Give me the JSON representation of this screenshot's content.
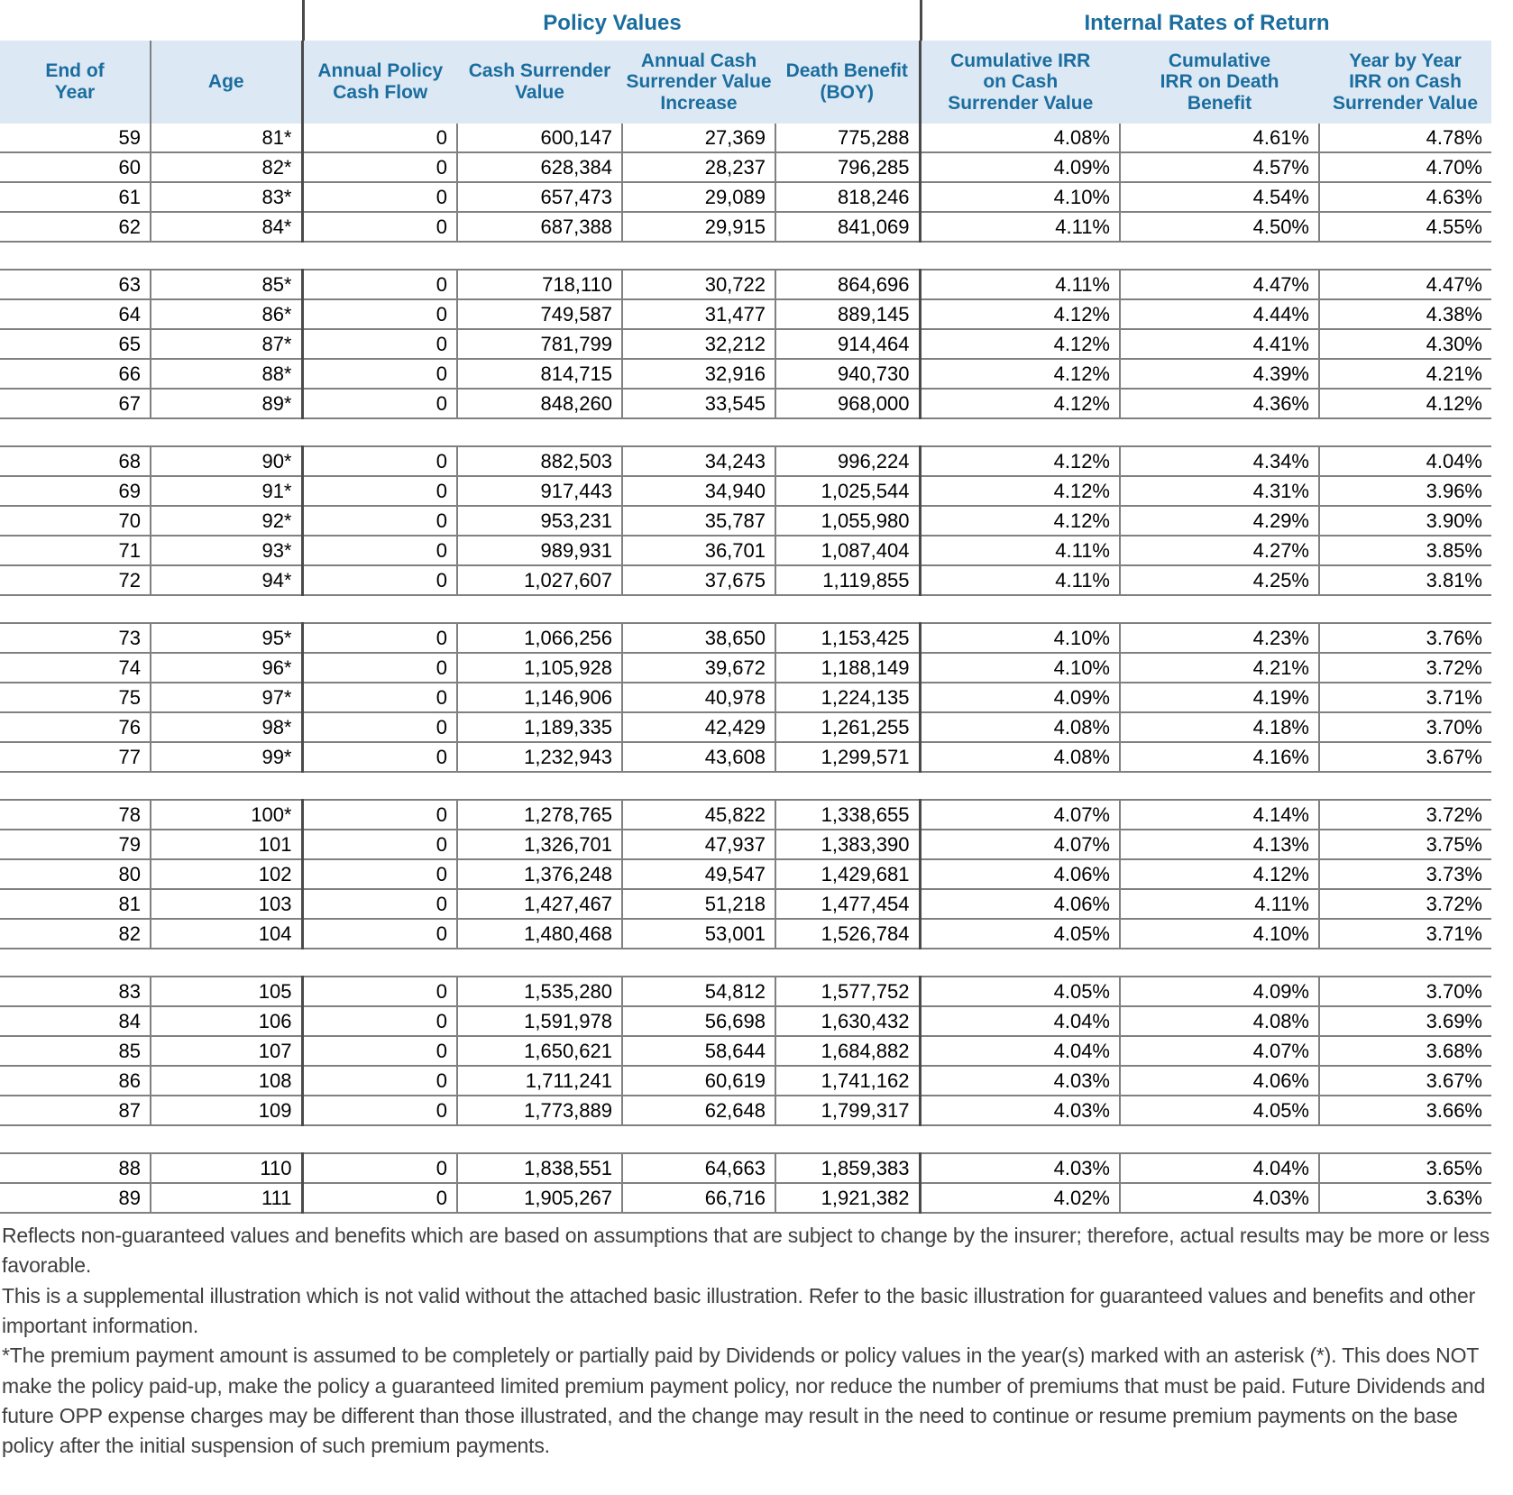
{
  "titles": {
    "policy_values": "Policy Values",
    "irr": "Internal Rates of Return"
  },
  "columns": [
    "End of\nYear",
    "Age",
    "Annual Policy\nCash Flow",
    "Cash Surrender\nValue",
    "Annual Cash\nSurrender Value\nIncrease",
    "Death Benefit\n(BOY)",
    "Cumulative IRR\non Cash\nSurrender Value",
    "Cumulative\nIRR on Death\nBenefit",
    "Year by Year\nIRR on Cash\nSurrender Value"
  ],
  "colors": {
    "header_background": "#dce8f4",
    "header_text": "#1a6d9e",
    "gridline": "#808080",
    "group_divider": "#4a4a4a",
    "footnote_text": "#3f3f3f"
  },
  "row_groups": [
    {
      "rows": [
        {
          "cells": [
            "59",
            "81*",
            "0",
            "600,147",
            "27,369",
            "775,288",
            "4.08%",
            "4.61%",
            "4.78%"
          ]
        },
        {
          "cells": [
            "60",
            "82*",
            "0",
            "628,384",
            "28,237",
            "796,285",
            "4.09%",
            "4.57%",
            "4.70%"
          ]
        },
        {
          "cells": [
            "61",
            "83*",
            "0",
            "657,473",
            "29,089",
            "818,246",
            "4.10%",
            "4.54%",
            "4.63%"
          ]
        },
        {
          "cells": [
            "62",
            "84*",
            "0",
            "687,388",
            "29,915",
            "841,069",
            "4.11%",
            "4.50%",
            "4.55%"
          ]
        }
      ]
    },
    {
      "rows": [
        {
          "cells": [
            "63",
            "85*",
            "0",
            "718,110",
            "30,722",
            "864,696",
            "4.11%",
            "4.47%",
            "4.47%"
          ]
        },
        {
          "cells": [
            "64",
            "86*",
            "0",
            "749,587",
            "31,477",
            "889,145",
            "4.12%",
            "4.44%",
            "4.38%"
          ]
        },
        {
          "cells": [
            "65",
            "87*",
            "0",
            "781,799",
            "32,212",
            "914,464",
            "4.12%",
            "4.41%",
            "4.30%"
          ]
        },
        {
          "cells": [
            "66",
            "88*",
            "0",
            "814,715",
            "32,916",
            "940,730",
            "4.12%",
            "4.39%",
            "4.21%"
          ]
        },
        {
          "cells": [
            "67",
            "89*",
            "0",
            "848,260",
            "33,545",
            "968,000",
            "4.12%",
            "4.36%",
            "4.12%"
          ]
        }
      ]
    },
    {
      "rows": [
        {
          "cells": [
            "68",
            "90*",
            "0",
            "882,503",
            "34,243",
            "996,224",
            "4.12%",
            "4.34%",
            "4.04%"
          ]
        },
        {
          "cells": [
            "69",
            "91*",
            "0",
            "917,443",
            "34,940",
            "1,025,544",
            "4.12%",
            "4.31%",
            "3.96%"
          ]
        },
        {
          "cells": [
            "70",
            "92*",
            "0",
            "953,231",
            "35,787",
            "1,055,980",
            "4.12%",
            "4.29%",
            "3.90%"
          ]
        },
        {
          "cells": [
            "71",
            "93*",
            "0",
            "989,931",
            "36,701",
            "1,087,404",
            "4.11%",
            "4.27%",
            "3.85%"
          ]
        },
        {
          "cells": [
            "72",
            "94*",
            "0",
            "1,027,607",
            "37,675",
            "1,119,855",
            "4.11%",
            "4.25%",
            "3.81%"
          ]
        }
      ]
    },
    {
      "rows": [
        {
          "cells": [
            "73",
            "95*",
            "0",
            "1,066,256",
            "38,650",
            "1,153,425",
            "4.10%",
            "4.23%",
            "3.76%"
          ]
        },
        {
          "cells": [
            "74",
            "96*",
            "0",
            "1,105,928",
            "39,672",
            "1,188,149",
            "4.10%",
            "4.21%",
            "3.72%"
          ]
        },
        {
          "cells": [
            "75",
            "97*",
            "0",
            "1,146,906",
            "40,978",
            "1,224,135",
            "4.09%",
            "4.19%",
            "3.71%"
          ]
        },
        {
          "cells": [
            "76",
            "98*",
            "0",
            "1,189,335",
            "42,429",
            "1,261,255",
            "4.08%",
            "4.18%",
            "3.70%"
          ]
        },
        {
          "cells": [
            "77",
            "99*",
            "0",
            "1,232,943",
            "43,608",
            "1,299,571",
            "4.08%",
            "4.16%",
            "3.67%"
          ]
        }
      ]
    },
    {
      "rows": [
        {
          "cells": [
            "78",
            "100*",
            "0",
            "1,278,765",
            "45,822",
            "1,338,655",
            "4.07%",
            "4.14%",
            "3.72%"
          ]
        },
        {
          "cells": [
            "79",
            "101",
            "0",
            "1,326,701",
            "47,937",
            "1,383,390",
            "4.07%",
            "4.13%",
            "3.75%"
          ]
        },
        {
          "cells": [
            "80",
            "102",
            "0",
            "1,376,248",
            "49,547",
            "1,429,681",
            "4.06%",
            "4.12%",
            "3.73%"
          ]
        },
        {
          "cells": [
            "81",
            "103",
            "0",
            "1,427,467",
            "51,218",
            "1,477,454",
            "4.06%",
            "4.11%",
            "3.72%"
          ]
        },
        {
          "cells": [
            "82",
            "104",
            "0",
            "1,480,468",
            "53,001",
            "1,526,784",
            "4.05%",
            "4.10%",
            "3.71%"
          ]
        }
      ]
    },
    {
      "rows": [
        {
          "cells": [
            "83",
            "105",
            "0",
            "1,535,280",
            "54,812",
            "1,577,752",
            "4.05%",
            "4.09%",
            "3.70%"
          ]
        },
        {
          "cells": [
            "84",
            "106",
            "0",
            "1,591,978",
            "56,698",
            "1,630,432",
            "4.04%",
            "4.08%",
            "3.69%"
          ]
        },
        {
          "cells": [
            "85",
            "107",
            "0",
            "1,650,621",
            "58,644",
            "1,684,882",
            "4.04%",
            "4.07%",
            "3.68%"
          ]
        },
        {
          "cells": [
            "86",
            "108",
            "0",
            "1,711,241",
            "60,619",
            "1,741,162",
            "4.03%",
            "4.06%",
            "3.67%"
          ]
        },
        {
          "cells": [
            "87",
            "109",
            "0",
            "1,773,889",
            "62,648",
            "1,799,317",
            "4.03%",
            "4.05%",
            "3.66%"
          ]
        }
      ]
    },
    {
      "rows": [
        {
          "cells": [
            "88",
            "110",
            "0",
            "1,838,551",
            "64,663",
            "1,859,383",
            "4.03%",
            "4.04%",
            "3.65%"
          ]
        },
        {
          "cells": [
            "89",
            "111",
            "0",
            "1,905,267",
            "66,716",
            "1,921,382",
            "4.02%",
            "4.03%",
            "3.63%"
          ]
        }
      ]
    }
  ],
  "footnotes": [
    "Reflects non-guaranteed values and benefits which are based on assumptions that are subject to change by the insurer; therefore, actual results may be more or less favorable.",
    "This is a supplemental illustration which is not valid without the attached basic illustration.  Refer to the basic illustration for guaranteed values and benefits and other important information.",
    "*The premium payment amount is assumed to be completely or partially paid by Dividends or policy values in the year(s) marked with an asterisk (*). This does NOT make the policy paid-up, make the policy a guaranteed limited premium payment policy, nor reduce the number of premiums that must be paid.  Future Dividends and future OPP expense charges may be different than those illustrated, and the change may result in the need to continue or resume premium payments on the base policy after the initial suspension of such premium payments."
  ]
}
